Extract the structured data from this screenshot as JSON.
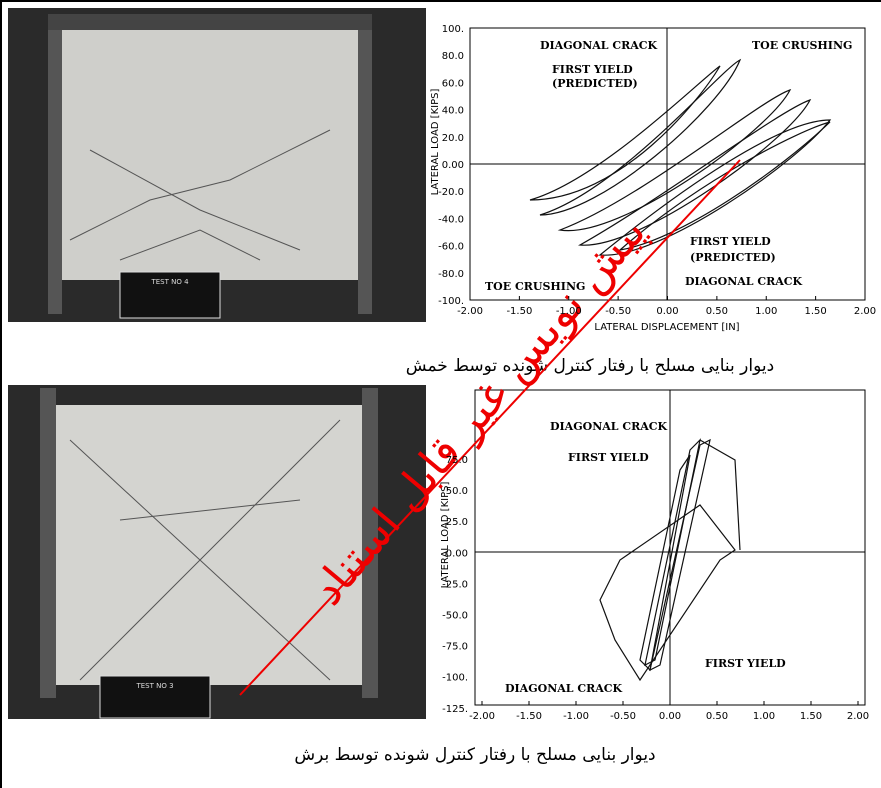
{
  "figures": [
    {
      "chart": {
        "y_label": "LATERAL LOAD [KIPS]",
        "x_label": "LATERAL DISPLACEMENT [IN]",
        "yticks": [
          "100.",
          "80.0",
          "60.0",
          "40.0",
          "20.0",
          "0.00",
          "-20.0",
          "-40.0",
          "-60.0",
          "-80.0",
          "-100."
        ],
        "xticks": [
          "-2.00",
          "-1.50",
          "-1.00",
          "-0.50",
          "0.00",
          "0.50",
          "1.00",
          "1.50",
          "2.00"
        ],
        "annotations": [
          "DIAGONAL CRACK",
          "TOE CRUSHING",
          "FIRST YIELD",
          "(PREDICTED)",
          "FIRST YIELD",
          "(PREDICTED)",
          "DIAGONAL CRACK",
          "TOE CRUSHING"
        ]
      },
      "photo_sign": "TEST NO 4",
      "caption": "دیوار بنایی مسلح با رفتار کنترل شونده توسط خمش"
    },
    {
      "chart": {
        "y_label": "LATERAL LOAD [KIPS]",
        "yticks": [
          "75.0",
          "50.0",
          "25.0",
          "0.00",
          "-25.0",
          "-50.0",
          "-75.0",
          "-100.",
          "-125."
        ],
        "xticks": [
          "-2.00",
          "-1.50",
          "-1.00",
          "-0.50",
          "0.00",
          "0.50",
          "1.00",
          "1.50",
          "2.00"
        ],
        "annotations": [
          "DIAGONAL CRACK",
          "FIRST YIELD",
          "FIRST YIELD",
          "DIAGONAL CRACK"
        ]
      },
      "photo_sign": "TEST NO 3",
      "caption": "دیوار بنایی مسلح با رفتار کنترل شونده توسط برش"
    }
  ],
  "watermark": "پیش نویس غیر قابل استناد"
}
